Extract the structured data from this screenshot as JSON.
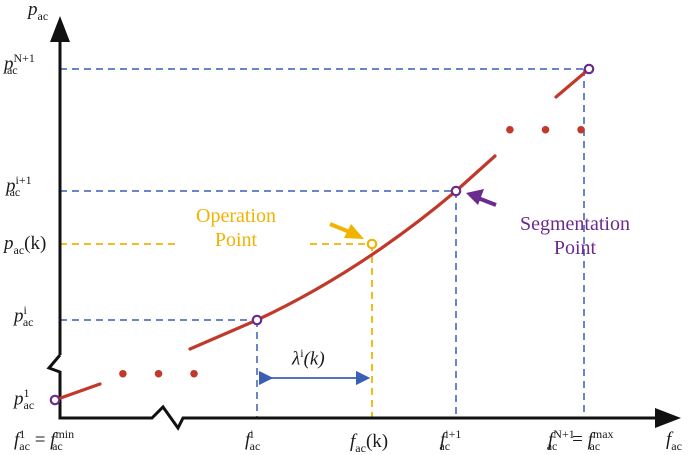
{
  "axes": {
    "y_symbol": "p",
    "y_sub": "ac",
    "x_symbol": "f",
    "x_sub": "ac"
  },
  "y_labels": {
    "p_N1": {
      "base": "p",
      "sub": "ac",
      "sup": "N+1"
    },
    "p_i1": {
      "base": "p",
      "sub": "ac",
      "sup": "i+1"
    },
    "p_k": {
      "base": "p",
      "sub": "ac",
      "arg": "(k)"
    },
    "p_i": {
      "base": "p",
      "sub": "ac",
      "sup": "i"
    },
    "p_1": {
      "base": "p",
      "sub": "ac",
      "sup": "1"
    }
  },
  "x_labels": {
    "f_1": {
      "base": "f",
      "sub": "ac",
      "sup": "1",
      "eq": "=",
      "min": "min"
    },
    "f_i": {
      "base": "f",
      "sub": "ac",
      "sup": "i"
    },
    "f_k": {
      "base": "f",
      "sub": "ac",
      "arg": "(k)"
    },
    "f_i1": {
      "base": "f",
      "sub": "ac",
      "sup": "i+1"
    },
    "f_N1": {
      "base": "f",
      "sub": "ac",
      "sup": "N+1",
      "eq": "=",
      "max": "max"
    }
  },
  "lambda": {
    "base": "λ",
    "sup": "i",
    "arg": "(k)"
  },
  "annotations": {
    "operation": {
      "line1": "Operation",
      "line2": "Point"
    },
    "segmentation": {
      "line1": "Segmentation",
      "line2": "Point"
    }
  },
  "ellipsis": "• • •",
  "colors": {
    "curve": "#c0392b",
    "guide_blue": "#3a5fb5",
    "guide_yellow": "#f0b400",
    "operation": "#f2b300",
    "segmentation": "#6a2a8e",
    "axis": "#111111"
  }
}
